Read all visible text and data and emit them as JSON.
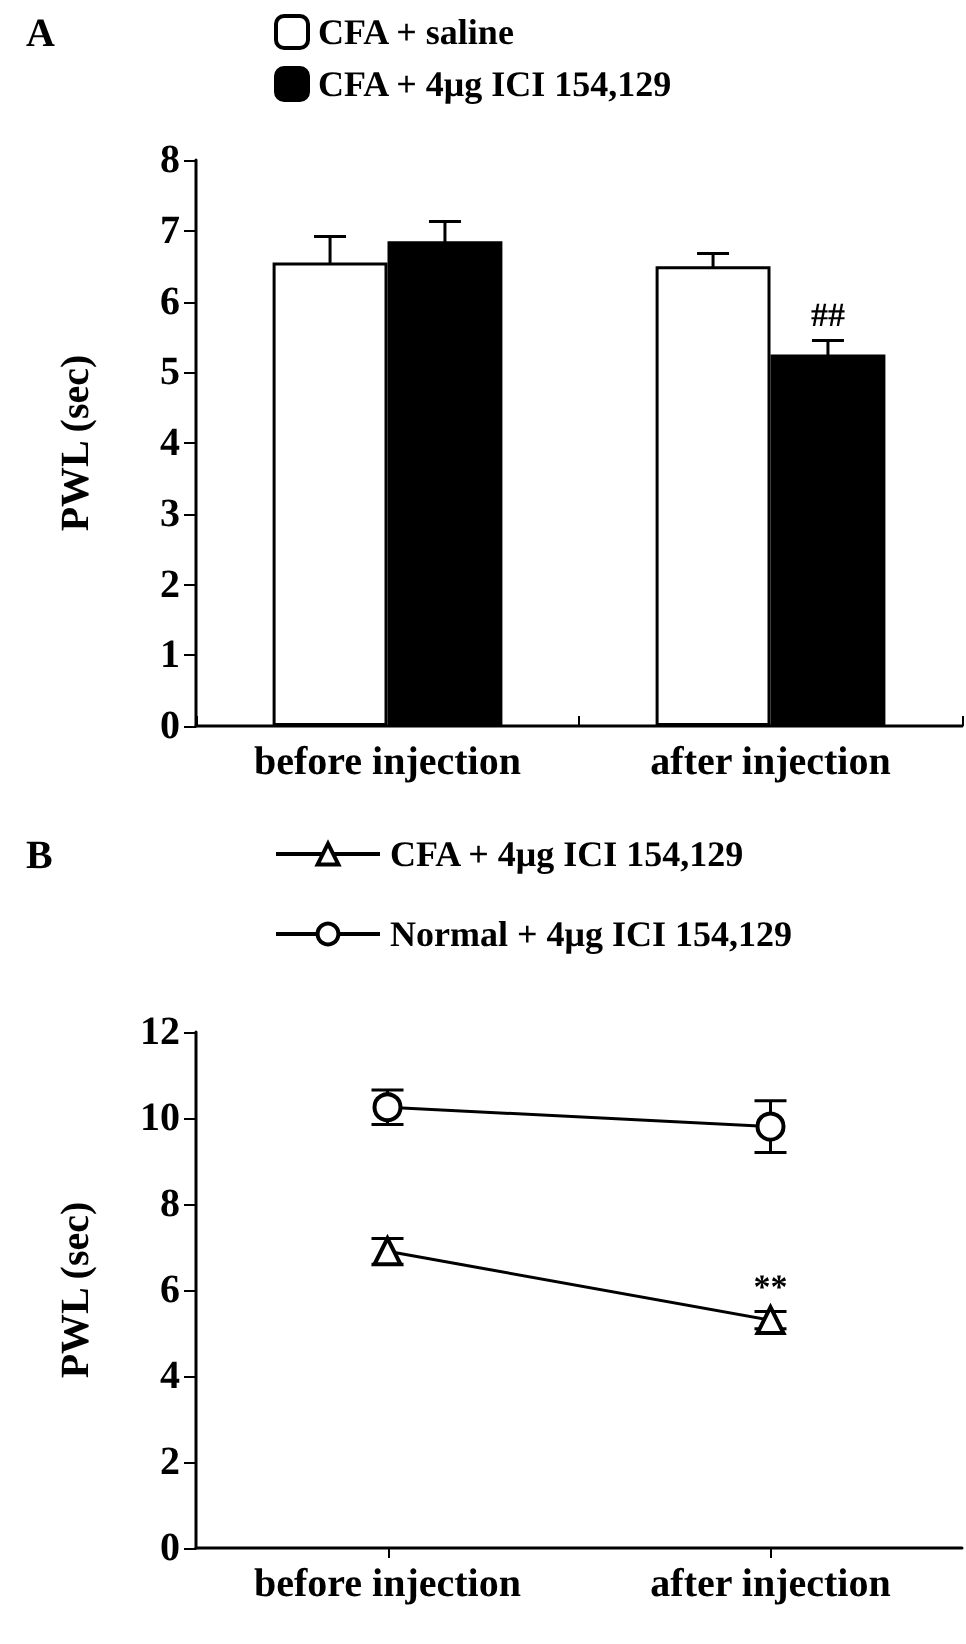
{
  "chart_data": [
    {
      "type": "bar",
      "title": "A",
      "ylabel": "PWL (sec)",
      "categories": [
        "before injection",
        "after injection"
      ],
      "ylim": [
        0,
        8
      ],
      "yticks": [
        0,
        1,
        2,
        3,
        4,
        5,
        6,
        7,
        8
      ],
      "grid": false,
      "legend": "top",
      "series": [
        {
          "name": "CFA + saline",
          "color": "#ffffff",
          "values": [
            6.55,
            6.5
          ],
          "errors": [
            0.37,
            0.18
          ]
        },
        {
          "name": "CFA + 4μg ICI 154,129",
          "color": "#000000",
          "values": [
            6.85,
            5.25
          ],
          "errors": [
            0.28,
            0.2
          ]
        }
      ],
      "annotations": [
        {
          "text": "##",
          "x": "after injection",
          "y": 5.45
        }
      ]
    },
    {
      "type": "line",
      "title": "B",
      "ylabel": "PWL (sec)",
      "categories": [
        "before injection",
        "after injection"
      ],
      "ylim": [
        0,
        12
      ],
      "yticks": [
        0,
        2,
        4,
        6,
        8,
        10,
        12
      ],
      "grid": false,
      "legend": "top",
      "series": [
        {
          "name": "CFA + 4μg ICI 154,129",
          "color": "#000000",
          "marker": "triangle",
          "values": [
            6.9,
            5.3
          ],
          "errors": [
            0.3,
            0.2
          ]
        },
        {
          "name": "Normal + 4μg ICI 154,129",
          "color": "#000000",
          "marker": "circle",
          "values": [
            10.25,
            9.8
          ],
          "errors": [
            0.4,
            0.6
          ]
        }
      ],
      "annotations": [
        {
          "text": "**",
          "x": "after injection",
          "y": 5.5
        }
      ]
    }
  ]
}
